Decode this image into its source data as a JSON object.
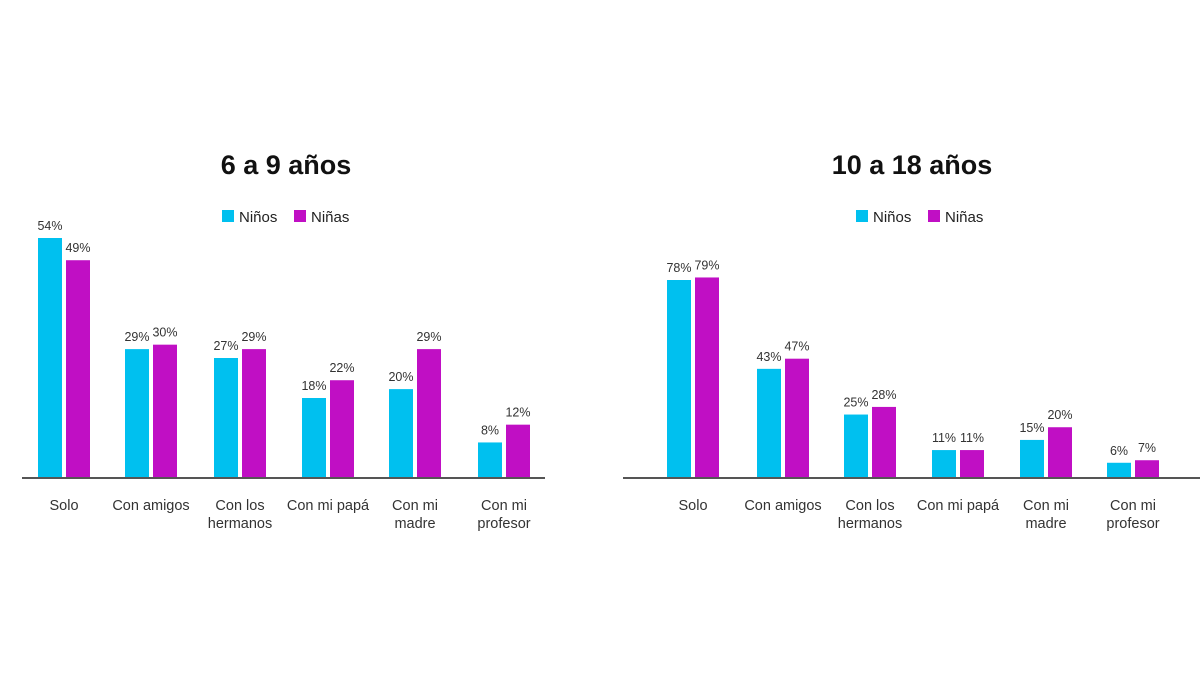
{
  "colors": {
    "ninos": "#00c0ef",
    "ninas": "#c00fc4",
    "axis": "#555555"
  },
  "chart_data": [
    {
      "type": "bar",
      "title": "6 a 9 años",
      "legend_placement": "top-center",
      "categories": [
        "Solo",
        "Con amigos",
        "Con los hermanos",
        "Con mi papá",
        "Con mi madre",
        "Con mi profesor"
      ],
      "category_lines": [
        [
          "Solo"
        ],
        [
          "Con amigos"
        ],
        [
          "Con los",
          "hermanos"
        ],
        [
          "Con mi papá"
        ],
        [
          "Con mi",
          "madre"
        ],
        [
          "Con mi",
          "profesor"
        ]
      ],
      "series": [
        {
          "name": "Niños",
          "values": [
            54,
            29,
            27,
            18,
            20,
            8
          ],
          "labels": [
            "54%",
            "29%",
            "27%",
            "18%",
            "20%",
            "8%"
          ]
        },
        {
          "name": "Niñas",
          "values": [
            49,
            30,
            29,
            22,
            29,
            12
          ],
          "labels": [
            "49%",
            "30%",
            "29%",
            "22%",
            "29%",
            "12%"
          ]
        }
      ],
      "ylim": [
        0,
        60
      ],
      "grid": false
    },
    {
      "type": "bar",
      "title": "10 a 18 años",
      "legend_placement": "top-center",
      "categories": [
        "Solo",
        "Con amigos",
        "Con los hermanos",
        "Con mi papá",
        "Con mi madre",
        "Con mi profesor"
      ],
      "category_lines": [
        [
          "Solo"
        ],
        [
          "Con amigos"
        ],
        [
          "Con los",
          "hermanos"
        ],
        [
          "Con mi papá"
        ],
        [
          "Con mi",
          "madre"
        ],
        [
          "Con mi",
          "profesor"
        ]
      ],
      "series": [
        {
          "name": "Niños",
          "values": [
            78,
            43,
            25,
            11,
            15,
            6
          ],
          "labels": [
            "78%",
            "43%",
            "25%",
            "11%",
            "15%",
            "6%"
          ]
        },
        {
          "name": "Niñas",
          "values": [
            79,
            47,
            28,
            11,
            20,
            7
          ],
          "labels": [
            "79%",
            "47%",
            "28%",
            "11%",
            "20%",
            "7%"
          ]
        }
      ],
      "ylim": [
        0,
        90
      ],
      "grid": false
    }
  ]
}
